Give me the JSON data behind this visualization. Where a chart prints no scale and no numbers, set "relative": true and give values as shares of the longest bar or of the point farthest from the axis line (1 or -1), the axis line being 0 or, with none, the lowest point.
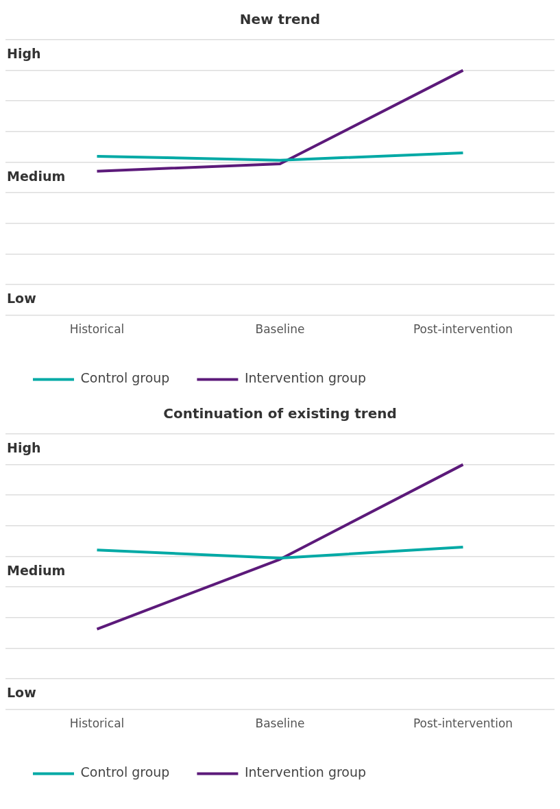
{
  "chart_data": [
    {
      "type": "line",
      "title": "New trend",
      "categories": [
        "Historical",
        "Baseline",
        "Post-intervention"
      ],
      "series": [
        {
          "name": "Control group",
          "color": "#00a9a5",
          "values": [
            0.649,
            0.633,
            0.663
          ]
        },
        {
          "name": "Intervention group",
          "color": "#5c1a7a",
          "values": [
            0.588,
            0.618,
            1
          ]
        }
      ],
      "relative": true,
      "annotations": [
        "Low",
        "Medium",
        "High"
      ],
      "grid": "y",
      "legend": "bottom left",
      "line_style": "solid"
    },
    {
      "type": "line",
      "title": "Continuation of existing trend",
      "categories": [
        "Historical",
        "Baseline",
        "Post-intervention"
      ],
      "series": [
        {
          "name": "Control group",
          "color": "#00a9a5",
          "values": [
            0.651,
            0.618,
            0.663
          ]
        },
        {
          "name": "Intervention group",
          "color": "#5c1a7a",
          "values": [
            0.328,
            0.613,
            1
          ]
        }
      ],
      "relative": true,
      "annotations": [
        "Low",
        "Medium",
        "High"
      ],
      "grid": "y",
      "legend": "bottom left",
      "line_style": "solid"
    }
  ]
}
